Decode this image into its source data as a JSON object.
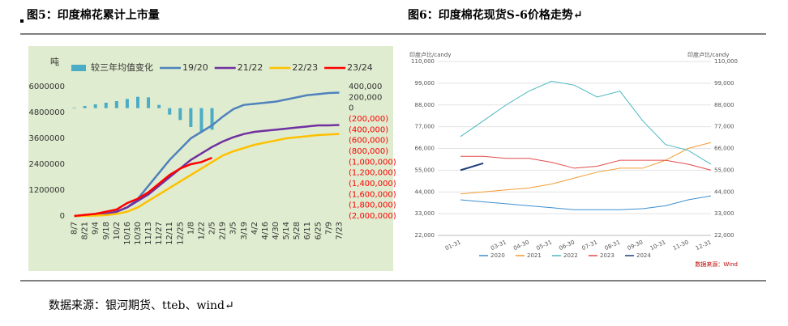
{
  "header": {
    "left": "图5：印度棉花累计上市量",
    "right": "图6：印度棉花现货S-6价格走势↵"
  },
  "chart_data": [
    {
      "type": "combo",
      "y_label": "吨",
      "background": "#dfeccf",
      "legend": "top",
      "categories": [
        "8/7",
        "8/21",
        "9/4",
        "9/18",
        "10/2",
        "10/16",
        "10/30",
        "11/13",
        "11/27",
        "12/11",
        "12/25",
        "1/8",
        "1/22",
        "2/5",
        "2/19",
        "3/5",
        "3/19",
        "4/2",
        "4/16",
        "4/30",
        "5/14",
        "5/28",
        "6/11",
        "6/25",
        "7/9",
        "7/23"
      ],
      "ylim": [
        0,
        6000000
      ],
      "yticks": [
        0,
        1200000,
        2400000,
        3600000,
        4800000,
        6000000
      ],
      "y2lim": [
        -2000000,
        400000
      ],
      "y2ticks": [
        {
          "value": 400000,
          "label": "400,000"
        },
        {
          "value": 200000,
          "label": "200,000"
        },
        0,
        {
          "value": -200000,
          "label": "(200,000)"
        },
        {
          "value": -400000,
          "label": "(400,000)"
        },
        {
          "value": -600000,
          "label": "(600,000)"
        },
        {
          "value": -800000,
          "label": "(800,000)"
        },
        {
          "value": -1000000,
          "label": "(1,000,000)"
        },
        {
          "value": -1200000,
          "label": "(1,200,000)"
        },
        {
          "value": -1400000,
          "label": "(1,400,000)"
        },
        {
          "value": -1600000,
          "label": "(1,600,000)"
        },
        {
          "value": -1800000,
          "label": "(1,800,000)"
        },
        {
          "value": -2000000,
          "label": "(2,000,000)"
        }
      ],
      "y2_negative_color": "#ff0000",
      "series": [
        {
          "name": "较三年均值变化",
          "type": "bar",
          "axis": "y2",
          "color": "#4bacc6",
          "values": [
            10000,
            40000,
            70000,
            100000,
            130000,
            170000,
            210000,
            200000,
            60000,
            -120000,
            -220000,
            -350000,
            -450000,
            -400000,
            null,
            null,
            null,
            null,
            null,
            null,
            null,
            null,
            null,
            null,
            null,
            null
          ]
        },
        {
          "name": "19/20",
          "type": "line",
          "color": "#4f81bd",
          "values": [
            0,
            20000,
            50000,
            100000,
            200000,
            400000,
            800000,
            1400000,
            2000000,
            2600000,
            3100000,
            3600000,
            3900000,
            4200000,
            4600000,
            4950000,
            5150000,
            5200000,
            5250000,
            5300000,
            5400000,
            5500000,
            5600000,
            5650000,
            5700000,
            5720000
          ]
        },
        {
          "name": "21/22",
          "type": "line",
          "color": "#7030a0",
          "values": [
            0,
            20000,
            50000,
            100000,
            200000,
            400000,
            700000,
            1000000,
            1400000,
            1800000,
            2200000,
            2600000,
            2900000,
            3200000,
            3450000,
            3650000,
            3800000,
            3900000,
            3950000,
            4000000,
            4050000,
            4100000,
            4150000,
            4200000,
            4200000,
            4220000
          ]
        },
        {
          "name": "22/23",
          "type": "line",
          "color": "#ffc000",
          "values": [
            0,
            10000,
            20000,
            40000,
            100000,
            200000,
            400000,
            700000,
            1000000,
            1300000,
            1600000,
            1900000,
            2200000,
            2500000,
            2800000,
            3000000,
            3150000,
            3300000,
            3400000,
            3500000,
            3600000,
            3650000,
            3700000,
            3750000,
            3780000,
            3800000
          ]
        },
        {
          "name": "23/24",
          "type": "line",
          "color": "#ff0000",
          "values": [
            0,
            50000,
            100000,
            200000,
            300000,
            600000,
            800000,
            1100000,
            1500000,
            1900000,
            2200000,
            2400000,
            2500000,
            2700000,
            null,
            null,
            null,
            null,
            null,
            null,
            null,
            null,
            null,
            null,
            null,
            null
          ]
        }
      ]
    },
    {
      "type": "line",
      "y_label": "印度卢比/candy",
      "note": "数据来源：Wind",
      "grid": true,
      "legend": "bottom",
      "categories": [
        "01-31",
        null,
        "03-31",
        "04-30",
        "05-31",
        "06-30",
        "07-31",
        "08-31",
        "09-30",
        "10-31",
        "11-30",
        "12-31"
      ],
      "ylim": [
        22000,
        110000
      ],
      "yticks": [
        {
          "value": 22000,
          "label": "22,000"
        },
        {
          "value": 33000,
          "label": "33,000"
        },
        {
          "value": 44000,
          "label": "44,000"
        },
        {
          "value": 55000,
          "label": "55,000"
        },
        {
          "value": 66000,
          "label": "66,000"
        },
        {
          "value": 77000,
          "label": "77,000"
        },
        {
          "value": 88000,
          "label": "88,000"
        },
        {
          "value": 99000,
          "label": "99,000"
        },
        {
          "value": 110000,
          "label": "110,000"
        }
      ],
      "series": [
        {
          "name": "2020",
          "color": "#3d8fd0",
          "values": [
            40000,
            39000,
            38000,
            37000,
            36000,
            35000,
            35000,
            35000,
            35500,
            37000,
            40000,
            42000
          ]
        },
        {
          "name": "2021",
          "color": "#f39c32",
          "values": [
            43000,
            44000,
            45000,
            46000,
            48000,
            51000,
            54000,
            56000,
            56000,
            60000,
            66000,
            69000
          ]
        },
        {
          "name": "2022",
          "color": "#4ab8c1",
          "values": [
            72000,
            80000,
            88000,
            95000,
            100000,
            98000,
            92000,
            95000,
            80000,
            68000,
            65000,
            58000
          ]
        },
        {
          "name": "2023",
          "color": "#e24c4b",
          "values": [
            62000,
            62000,
            61000,
            61000,
            59000,
            56000,
            57000,
            60000,
            60000,
            60000,
            58000,
            55000
          ]
        },
        {
          "name": "2024",
          "color": "#1f3d7a",
          "values": [
            55000,
            58500,
            null,
            null,
            null,
            null,
            null,
            null,
            null,
            null,
            null,
            null
          ]
        }
      ]
    }
  ],
  "footer": {
    "source": "数据来源：银河期货、tteb、wind↵"
  }
}
